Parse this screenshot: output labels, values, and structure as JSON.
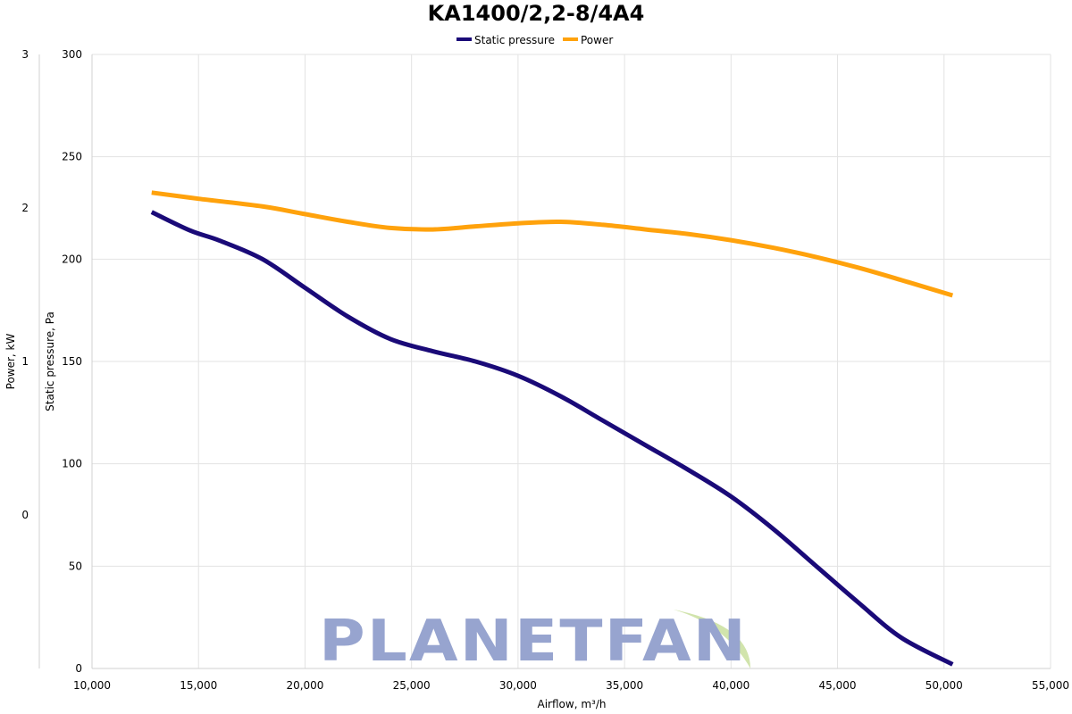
{
  "chart_data": {
    "type": "line",
    "title": "KA1400/2,2-8/4A4",
    "xlabel": "Airflow, m³/h",
    "ylabel_left_outer": "Power, kW",
    "ylabel_left_inner": "Static pressure, Pa",
    "xlim": [
      10000,
      55000
    ],
    "ylim_pressure": [
      0,
      300
    ],
    "ylim_power": [
      -1,
      3
    ],
    "x_ticks": [
      10000,
      15000,
      20000,
      25000,
      30000,
      35000,
      40000,
      45000,
      50000,
      55000
    ],
    "x_tick_labels": [
      "10,000",
      "15,000",
      "20,000",
      "25,000",
      "30,000",
      "35,000",
      "40,000",
      "45,000",
      "50,000",
      "55,000"
    ],
    "pressure_ticks": [
      0,
      50,
      100,
      150,
      200,
      250,
      300
    ],
    "power_ticks": [
      0,
      1,
      2,
      3
    ],
    "grid": true,
    "legend_position": "top-center",
    "series": [
      {
        "name": "Static pressure",
        "axis": "pressure",
        "color": "#1a0a78",
        "x": [
          12800,
          14600,
          16000,
          18000,
          20000,
          22000,
          24000,
          26000,
          28000,
          30000,
          32000,
          34000,
          36000,
          38000,
          40000,
          42000,
          44000,
          46000,
          48000,
          50400
        ],
        "y": [
          223,
          214,
          209,
          200,
          186,
          172,
          161,
          155,
          150,
          143,
          133,
          121,
          109,
          97,
          84,
          68,
          50,
          32,
          15,
          2
        ]
      },
      {
        "name": "Power",
        "axis": "power",
        "color": "#ffa20c",
        "x": [
          12800,
          15000,
          18000,
          20000,
          22000,
          24000,
          26000,
          28000,
          30000,
          32000,
          34000,
          36000,
          38000,
          40000,
          42000,
          44000,
          46000,
          48000,
          50400
        ],
        "y": [
          2.1,
          2.06,
          2.01,
          1.96,
          1.91,
          1.87,
          1.86,
          1.88,
          1.9,
          1.91,
          1.89,
          1.86,
          1.83,
          1.79,
          1.74,
          1.68,
          1.61,
          1.53,
          1.43
        ]
      }
    ]
  },
  "watermark": {
    "text": "PLANETFAN",
    "text_color": "#97a4cf",
    "leaf_color": "#c9df9e"
  }
}
